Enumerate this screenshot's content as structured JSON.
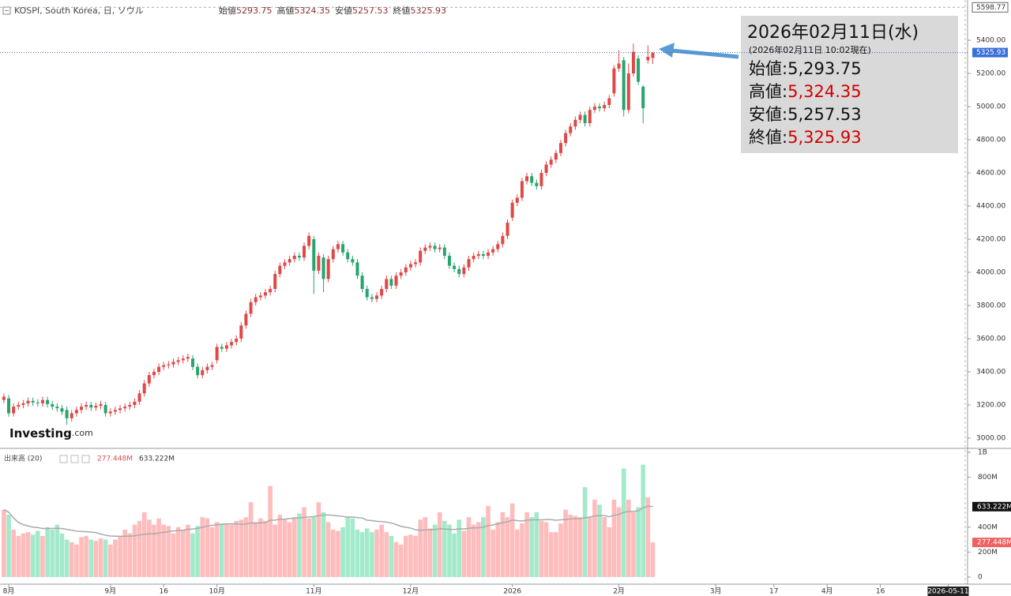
{
  "chart_data": {
    "type": "candlestick",
    "title": "KOSPI, South Korea, 日, ソウル",
    "ohlc_legend": [
      {
        "label": "始値",
        "value": "5293.75"
      },
      {
        "label": "高値",
        "value": "5324.35"
      },
      {
        "label": "安値",
        "value": "5257.53"
      },
      {
        "label": "終値",
        "value": "5325.93"
      }
    ],
    "open": [
      3230,
      3240,
      3150,
      3190,
      3200,
      3210,
      3225,
      3215,
      3210,
      3230,
      3205,
      3190,
      3180,
      3170,
      3120,
      3150,
      3170,
      3190,
      3200,
      3185,
      3195,
      3200,
      3150,
      3160,
      3170,
      3180,
      3190,
      3200,
      3220,
      3270,
      3330,
      3380,
      3400,
      3430,
      3440,
      3445,
      3460,
      3470,
      3480,
      3480,
      3430,
      3380,
      3410,
      3430,
      3470,
      3550,
      3540,
      3560,
      3580,
      3600,
      3680,
      3750,
      3820,
      3850,
      3860,
      3880,
      3900,
      3990,
      4040,
      4060,
      4080,
      4100,
      4090,
      4160,
      4200,
      4010,
      4090,
      3960,
      4080,
      4140,
      4170,
      4120,
      4080,
      4060,
      3980,
      3900,
      3850,
      3840,
      3860,
      3900,
      3960,
      3920,
      3980,
      4000,
      4030,
      4050,
      4060,
      4130,
      4150,
      4160,
      4140,
      4150,
      4100,
      4040,
      4020,
      3990,
      4030,
      4080,
      4100,
      4110,
      4100,
      4120,
      4140,
      4170,
      4220,
      4330,
      4420,
      4450,
      4550,
      4580,
      4540,
      4520,
      4600,
      4650,
      4680,
      4720,
      4780,
      4840,
      4880,
      4920,
      4950,
      4900,
      4980,
      5000,
      4990,
      5010,
      5080,
      5230,
      5280,
      4980,
      5200,
      5290,
      5120,
      5280,
      5293.75
    ],
    "high": [
      3270,
      3260,
      3210,
      3220,
      3230,
      3245,
      3245,
      3235,
      3250,
      3250,
      3225,
      3210,
      3200,
      3190,
      3170,
      3190,
      3210,
      3220,
      3220,
      3215,
      3225,
      3220,
      3180,
      3190,
      3200,
      3210,
      3220,
      3240,
      3290,
      3350,
      3400,
      3420,
      3450,
      3460,
      3465,
      3480,
      3490,
      3500,
      3510,
      3500,
      3450,
      3430,
      3450,
      3460,
      3570,
      3570,
      3580,
      3600,
      3620,
      3700,
      3770,
      3840,
      3870,
      3880,
      3900,
      3920,
      4010,
      4060,
      4080,
      4100,
      4120,
      4120,
      4180,
      4240,
      4220,
      4120,
      4110,
      4100,
      4160,
      4190,
      4190,
      4140,
      4100,
      4080,
      4000,
      3920,
      3870,
      3880,
      3920,
      3980,
      3980,
      4000,
      4020,
      4050,
      4070,
      4080,
      4150,
      4170,
      4180,
      4180,
      4170,
      4170,
      4120,
      4060,
      4040,
      4050,
      4100,
      4120,
      4130,
      4130,
      4140,
      4160,
      4190,
      4240,
      4320,
      4440,
      4470,
      4570,
      4600,
      4600,
      4560,
      4620,
      4670,
      4700,
      4740,
      4800,
      4860,
      4900,
      4940,
      4970,
      4970,
      5000,
      5020,
      5020,
      5030,
      5070,
      5250,
      5340,
      5300,
      5260,
      5380,
      5310,
      5130,
      5370,
      5324.35
    ],
    "low": [
      3210,
      3130,
      3130,
      3170,
      3180,
      3190,
      3195,
      3190,
      3190,
      3185,
      3170,
      3160,
      3140,
      3080,
      3100,
      3130,
      3150,
      3170,
      3165,
      3165,
      3175,
      3130,
      3130,
      3140,
      3150,
      3160,
      3170,
      3180,
      3200,
      3250,
      3310,
      3360,
      3380,
      3410,
      3420,
      3425,
      3440,
      3450,
      3460,
      3410,
      3360,
      3360,
      3390,
      3410,
      3450,
      3520,
      3520,
      3540,
      3560,
      3580,
      3660,
      3730,
      3800,
      3830,
      3840,
      3860,
      3880,
      3970,
      4020,
      4040,
      4060,
      4070,
      4070,
      4140,
      3870,
      3990,
      3880,
      3940,
      4060,
      4120,
      4100,
      4060,
      4040,
      3960,
      3880,
      3830,
      3820,
      3820,
      3840,
      3880,
      3900,
      3900,
      3960,
      3980,
      4010,
      4030,
      4040,
      4110,
      4130,
      4120,
      4120,
      4080,
      4020,
      4000,
      3970,
      3970,
      4010,
      4060,
      4080,
      4080,
      4080,
      4100,
      4120,
      4150,
      4200,
      4310,
      4400,
      4430,
      4530,
      4520,
      4500,
      4500,
      4580,
      4630,
      4660,
      4700,
      4760,
      4820,
      4860,
      4900,
      4880,
      4880,
      4960,
      4970,
      4970,
      4990,
      5060,
      5210,
      4940,
      4960,
      5180,
      5130,
      4900,
      5260,
      5257.53
    ],
    "close": [
      3250,
      3150,
      3190,
      3200,
      3210,
      3225,
      3215,
      3210,
      3230,
      3205,
      3190,
      3180,
      3160,
      3120,
      3150,
      3170,
      3190,
      3200,
      3185,
      3195,
      3205,
      3150,
      3160,
      3170,
      3180,
      3190,
      3200,
      3220,
      3270,
      3330,
      3380,
      3400,
      3430,
      3440,
      3445,
      3460,
      3470,
      3480,
      3490,
      3430,
      3380,
      3410,
      3430,
      3440,
      3550,
      3540,
      3560,
      3580,
      3600,
      3680,
      3750,
      3820,
      3850,
      3860,
      3880,
      3900,
      3990,
      4040,
      4060,
      4080,
      4100,
      4090,
      4160,
      4220,
      4010,
      4100,
      3960,
      4080,
      4140,
      4170,
      4120,
      4080,
      4060,
      3980,
      3900,
      3850,
      3840,
      3860,
      3900,
      3960,
      3920,
      3980,
      4000,
      4030,
      4050,
      4060,
      4130,
      4150,
      4160,
      4140,
      4150,
      4100,
      4040,
      4020,
      3990,
      4030,
      4080,
      4100,
      4110,
      4100,
      4120,
      4140,
      4170,
      4220,
      4300,
      4420,
      4450,
      4550,
      4580,
      4540,
      4520,
      4600,
      4650,
      4680,
      4720,
      4780,
      4840,
      4880,
      4920,
      4950,
      4900,
      4980,
      5000,
      4990,
      5010,
      5050,
      5230,
      5260,
      4980,
      5200,
      5330,
      5150,
      4990,
      5300,
      5325.93
    ],
    "up_color": "#e04848",
    "down_color": "#28a46e",
    "period_high": 5598.77,
    "xlim": [
      -0.8,
      199
    ],
    "xticks": [
      {
        "value": 1,
        "label": "8月"
      },
      {
        "value": 22,
        "label": "9月"
      },
      {
        "value": 33,
        "label": "16"
      },
      {
        "value": 44,
        "label": "10月"
      },
      {
        "value": 64,
        "label": "11月"
      },
      {
        "value": 84,
        "label": "12月"
      },
      {
        "value": 105,
        "label": "2026"
      },
      {
        "value": 127,
        "label": "2月"
      },
      {
        "value": 147,
        "label": "3月"
      },
      {
        "value": 159,
        "label": "17"
      },
      {
        "value": 170,
        "label": "4月"
      },
      {
        "value": 181,
        "label": "16"
      },
      {
        "value": 195,
        "label": "2026-05-11"
      }
    ],
    "ylim": [
      2943,
      5643
    ],
    "yticks": [
      {
        "value": 3000,
        "label": "3000.00"
      },
      {
        "value": 3200,
        "label": "3200.00"
      },
      {
        "value": 3400,
        "label": "3400.00"
      },
      {
        "value": 3600,
        "label": "3600.00"
      },
      {
        "value": 3800,
        "label": "3800.00"
      },
      {
        "value": 4000,
        "label": "4000.00"
      },
      {
        "value": 4200,
        "label": "4200.00"
      },
      {
        "value": 4400,
        "label": "4400.00"
      },
      {
        "value": 4600,
        "label": "4600.00"
      },
      {
        "value": 4800,
        "label": "4800.00"
      },
      {
        "value": 5000,
        "label": "5000.00"
      },
      {
        "value": 5200,
        "label": "5200.00"
      },
      {
        "value": 5400,
        "label": "5400.00"
      }
    ],
    "volume": {
      "title": "出来高 (20)",
      "last_label": "277.448M",
      "ma_label": "633.222M",
      "up_color": "#ffbcbc",
      "down_color": "#a2eaca",
      "ma_color": "#aaaaaa",
      "values": [
        540,
        500,
        380,
        330,
        350,
        360,
        340,
        370,
        330,
        400,
        380,
        420,
        350,
        300,
        280,
        260,
        320,
        330,
        300,
        290,
        310,
        300,
        260,
        300,
        330,
        380,
        350,
        420,
        450,
        520,
        460,
        420,
        470,
        420,
        410,
        350,
        400,
        380,
        420,
        350,
        410,
        480,
        470,
        400,
        440,
        430,
        430,
        420,
        450,
        460,
        480,
        600,
        440,
        470,
        450,
        730,
        420,
        500,
        460,
        440,
        480,
        510,
        560,
        470,
        480,
        600,
        520,
        440,
        380,
        370,
        400,
        480,
        470,
        380,
        360,
        390,
        360,
        380,
        420,
        360,
        330,
        280,
        260,
        330,
        340,
        330,
        460,
        480,
        390,
        420,
        520,
        450,
        420,
        350,
        460,
        370,
        480,
        420,
        440,
        480,
        570,
        380,
        440,
        520,
        480,
        590,
        380,
        430,
        520,
        480,
        520,
        450,
        440,
        360,
        360,
        430,
        540,
        500,
        490,
        480,
        720,
        480,
        620,
        580,
        480,
        400,
        620,
        560,
        870,
        620,
        520,
        560,
        900,
        640,
        277.448
      ],
      "ylim": [
        -57,
        1025
      ],
      "yticks": [
        0,
        {
          "value": 200,
          "label": "200M"
        },
        {
          "value": 400,
          "label": "400M"
        },
        {
          "value": 800,
          "label": "800M"
        },
        {
          "value": 1000,
          "label": "1B"
        }
      ]
    },
    "info_box": {
      "date": "2026年02月11日(水)",
      "note": "(2026年02月11日 10:02現在)",
      "rows": [
        {
          "label": "始値:",
          "value": "5,293.75",
          "color": "#111111"
        },
        {
          "label": "高値:",
          "value": "5,324.35",
          "color": "#d00000"
        },
        {
          "label": "安値:",
          "value": "5,257.53",
          "color": "#111111"
        },
        {
          "label": "終値:",
          "value": "5,325.93",
          "color": "#d00000"
        }
      ]
    },
    "logo": {
      "name": "Investing",
      "suffix": ".com"
    }
  }
}
